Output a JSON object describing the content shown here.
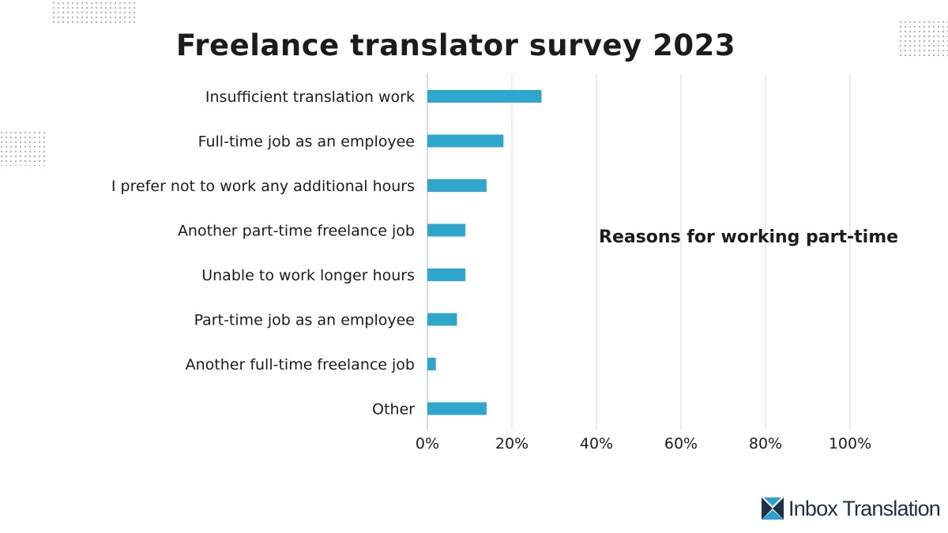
{
  "title": "Freelance translator survey 2023",
  "subtitle": "Reasons for working part-time",
  "logo": {
    "text": "Inbox Translation"
  },
  "colors": {
    "bar": "#2fa7cc",
    "grid": "#e6e6e6",
    "axis": "#cccccc",
    "logo_dark": "#1c3048",
    "logo_accent": "#2a9fd0"
  },
  "chart_data": {
    "type": "bar",
    "orientation": "horizontal",
    "categories": [
      "Insufficient translation work",
      "Full-time job as an employee",
      "I prefer not to work any additional hours",
      "Another part-time freelance job",
      "Unable to work longer hours",
      "Part-time job as an employee",
      "Another full-time freelance job",
      "Other"
    ],
    "values": [
      27,
      18,
      14,
      9,
      9,
      7,
      2,
      14
    ],
    "unit": "%",
    "xlim": [
      0,
      100
    ],
    "xticks": [
      "0%",
      "20%",
      "40%",
      "60%",
      "80%",
      "100%"
    ],
    "grid": true,
    "legend": "none"
  }
}
